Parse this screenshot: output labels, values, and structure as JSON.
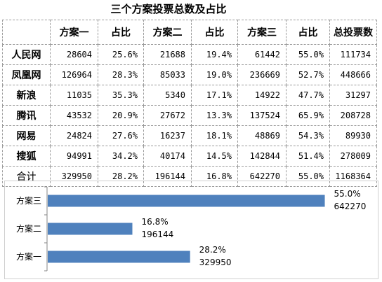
{
  "title": "三个方案投票总数及占比",
  "table": {
    "headers": [
      "",
      "方案一",
      "占比",
      "方案二",
      "占比",
      "方案三",
      "占比",
      "总投票数"
    ],
    "rows": [
      [
        "人民网",
        "28604",
        "25.6%",
        "21688",
        "19.4%",
        "61442",
        "55.0%",
        "111734"
      ],
      [
        "凤凰网",
        "126964",
        "28.3%",
        "85033",
        "19.0%",
        "236669",
        "52.7%",
        "448666"
      ],
      [
        "新浪",
        "11035",
        "35.3%",
        "5340",
        "17.1%",
        "14922",
        "47.7%",
        "31297"
      ],
      [
        "腾讯",
        "43532",
        "20.9%",
        "27672",
        "13.3%",
        "137524",
        "65.9%",
        "208728"
      ],
      [
        "网易",
        "24824",
        "27.6%",
        "16237",
        "18.1%",
        "48869",
        "54.3%",
        "89930"
      ],
      [
        "搜狐",
        "94991",
        "34.2%",
        "40174",
        "14.5%",
        "142844",
        "51.4%",
        "278009"
      ],
      [
        "合计",
        "329950",
        "28.2%",
        "196144",
        "16.8%",
        "642270",
        "55.0%",
        "1168364"
      ]
    ]
  },
  "chart_data": {
    "type": "bar",
    "orientation": "horizontal",
    "categories": [
      "方案三",
      "方案二",
      "方案一"
    ],
    "values": [
      642270,
      196144,
      329950
    ],
    "percent_labels": [
      "55.0%",
      "16.8%",
      "28.2%"
    ],
    "value_labels": [
      "642270",
      "196144",
      "329950"
    ],
    "xlim": [
      0,
      700000
    ],
    "grid": false,
    "bar_color": "#4f81bd",
    "axis_color": "#868686"
  }
}
